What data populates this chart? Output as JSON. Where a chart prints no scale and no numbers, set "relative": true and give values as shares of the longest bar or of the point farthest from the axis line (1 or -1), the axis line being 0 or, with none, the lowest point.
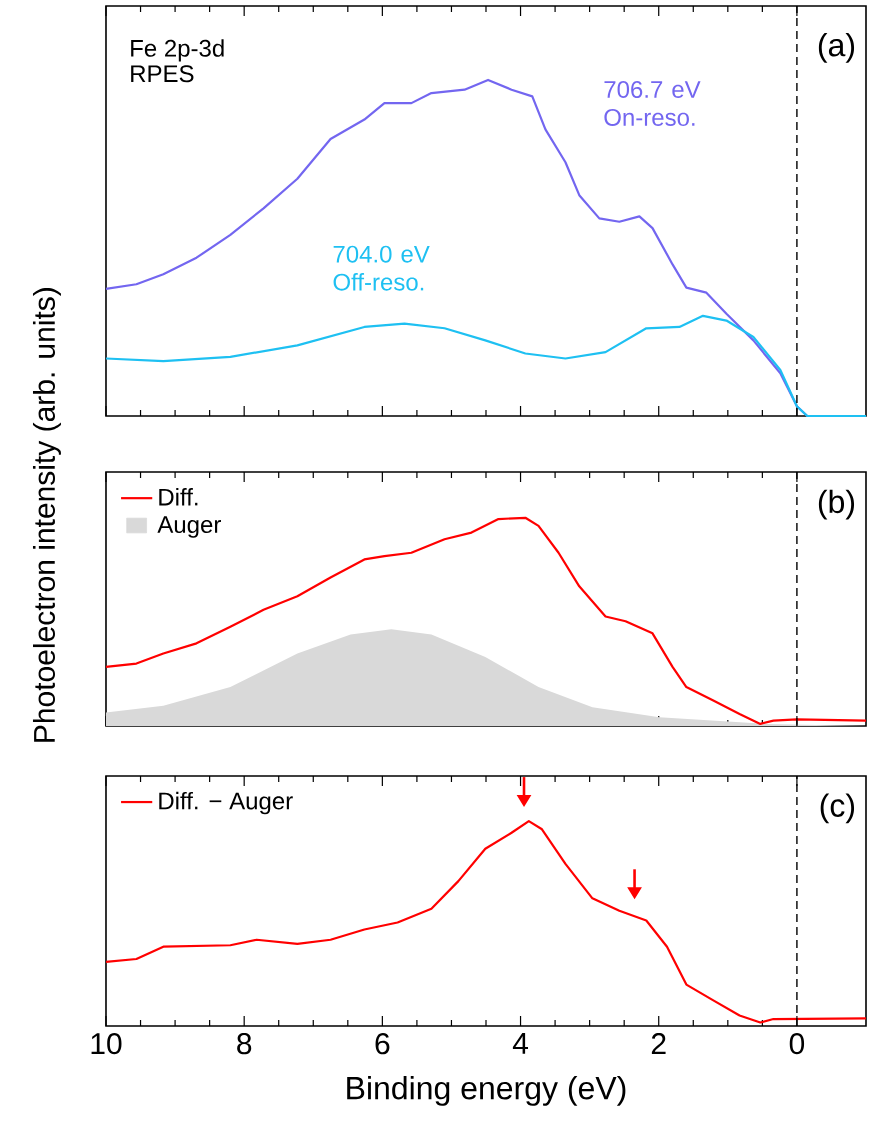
{
  "chart_data": [
    {
      "type": "line",
      "title": "(a)",
      "relative": true,
      "xlim": [
        10,
        -1
      ],
      "xticks": [
        10,
        8,
        6,
        4,
        2,
        0
      ],
      "tick_labels": false,
      "legend": false,
      "annotations": [
        "Fe 2p-3d",
        "RPES"
      ],
      "ref_lines": [
        {
          "axis": "x",
          "value": 0,
          "line_style": "dashed"
        }
      ],
      "series": [
        {
          "name": "706.7 eV On-reso.",
          "color": "#7366f0",
          "x": [
            10,
            9.56,
            9.17,
            8.69,
            8.2,
            7.72,
            7.23,
            6.75,
            6.26,
            5.97,
            5.58,
            5.29,
            4.81,
            4.47,
            4.13,
            3.83,
            3.64,
            3.35,
            3.15,
            2.86,
            2.57,
            2.28,
            2.09,
            1.8,
            1.6,
            1.31,
            1.02,
            0.63,
            0.24,
            0.0,
            -0.15,
            -1.0
          ],
          "values": [
            0.378,
            0.392,
            0.422,
            0.471,
            0.539,
            0.618,
            0.706,
            0.824,
            0.882,
            0.931,
            0.931,
            0.961,
            0.971,
            1.0,
            0.971,
            0.951,
            0.853,
            0.755,
            0.657,
            0.588,
            0.578,
            0.594,
            0.559,
            0.451,
            0.382,
            0.367,
            0.304,
            0.225,
            0.127,
            0.029,
            0,
            0
          ]
        },
        {
          "name": "704.0 eV Off-reso.",
          "color": "#1ec0f2",
          "x": [
            10,
            9.17,
            8.2,
            7.23,
            6.26,
            5.68,
            5.1,
            4.51,
            3.93,
            3.35,
            2.77,
            2.18,
            1.7,
            1.36,
            1.02,
            0.63,
            0.24,
            0.0,
            -0.15,
            -1.0
          ],
          "values": [
            0.171,
            0.163,
            0.176,
            0.21,
            0.265,
            0.275,
            0.261,
            0.225,
            0.186,
            0.171,
            0.19,
            0.261,
            0.265,
            0.298,
            0.284,
            0.235,
            0.137,
            0.029,
            0,
            0
          ]
        }
      ]
    },
    {
      "type": "line",
      "title": "(b)",
      "relative": true,
      "xlim": [
        10,
        -1
      ],
      "xticks": [
        10,
        8,
        6,
        4,
        2,
        0
      ],
      "tick_labels": false,
      "legend": "top left",
      "ylabel": "Photoelectron intensity (arb. units)",
      "ref_lines": [
        {
          "axis": "x",
          "value": 0,
          "line_style": "dashed"
        }
      ],
      "series": [
        {
          "name": "Diff.",
          "color": "#ff0000",
          "x": [
            10,
            9.56,
            9.17,
            8.69,
            8.2,
            7.72,
            7.23,
            6.75,
            6.26,
            5.97,
            5.58,
            5.1,
            4.71,
            4.32,
            3.93,
            3.74,
            3.45,
            3.15,
            2.77,
            2.48,
            2.09,
            1.8,
            1.6,
            1.21,
            0.83,
            0.53,
            0.34,
            0.0,
            -1.0
          ],
          "values": [
            0.284,
            0.3,
            0.348,
            0.397,
            0.477,
            0.558,
            0.623,
            0.713,
            0.8,
            0.816,
            0.832,
            0.897,
            0.929,
            0.994,
            1.0,
            0.961,
            0.832,
            0.671,
            0.526,
            0.503,
            0.445,
            0.284,
            0.187,
            0.123,
            0.058,
            0.01,
            0.026,
            0.032,
            0.026
          ]
        },
        {
          "name": "Auger",
          "type": "area",
          "color": "#d9d9d9",
          "x": [
            10,
            9.17,
            8.2,
            7.23,
            6.46,
            5.87,
            5.29,
            4.51,
            3.74,
            2.96,
            1.99,
            0.44,
            -1.0
          ],
          "values": [
            0.065,
            0.097,
            0.187,
            0.348,
            0.439,
            0.465,
            0.439,
            0.332,
            0.187,
            0.09,
            0.042,
            0.01,
            0
          ]
        }
      ]
    },
    {
      "type": "line",
      "title": "(c)",
      "relative": true,
      "xlim": [
        10,
        -1
      ],
      "xticks": [
        10,
        8,
        6,
        4,
        2,
        0
      ],
      "tick_labels": "x",
      "legend": "top left",
      "xlabel": "Binding energy (eV)",
      "ref_lines": [
        {
          "axis": "x",
          "value": 0,
          "line_style": "dashed"
        }
      ],
      "series": [
        {
          "name": "Diff. − Auger",
          "color": "#ff0000",
          "x": [
            10,
            9.56,
            9.17,
            8.2,
            7.82,
            7.23,
            6.75,
            6.26,
            5.78,
            5.29,
            4.9,
            4.51,
            4.13,
            3.88,
            3.69,
            3.35,
            2.96,
            2.57,
            2.18,
            1.88,
            1.6,
            1.21,
            0.83,
            0.53,
            0.34,
            -1.0
          ],
          "values": [
            0.313,
            0.327,
            0.387,
            0.394,
            0.421,
            0.401,
            0.421,
            0.471,
            0.505,
            0.572,
            0.707,
            0.865,
            0.943,
            1.0,
            0.96,
            0.791,
            0.623,
            0.562,
            0.515,
            0.387,
            0.202,
            0.125,
            0.051,
            0.017,
            0.034,
            0.037
          ]
        }
      ]
    }
  ]
}
